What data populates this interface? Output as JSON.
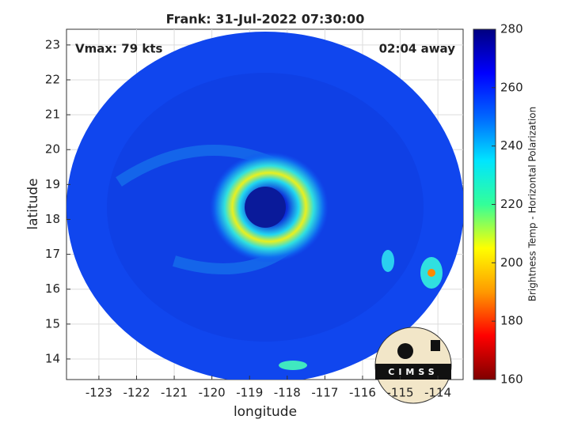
{
  "title": "Frank: 31-Jul-2022 07:30:00",
  "annotations": {
    "vmax": "Vmax: 79 kts",
    "time_away": "02:04 away"
  },
  "map": {
    "xlabel": "longitude",
    "ylabel": "latitude",
    "xlim": [
      -123.86,
      -113.33
    ],
    "ylim": [
      13.41,
      23.45
    ],
    "xticks": [
      -123,
      -122,
      -121,
      -120,
      -119,
      -118,
      -117,
      -116,
      -115,
      -114
    ],
    "yticks": [
      14,
      15,
      16,
      17,
      18,
      19,
      20,
      21,
      22,
      23
    ],
    "grid": true
  },
  "colorbar": {
    "label": "Brightness Temp - Horizontal Polarization",
    "lim": [
      160,
      280
    ],
    "ticks": [
      160,
      180,
      200,
      220,
      240,
      260,
      280
    ],
    "colormap": [
      "#7f0000",
      "#ff0000",
      "#ff9900",
      "#ffff00",
      "#33ff99",
      "#00e5ff",
      "#0066ff",
      "#0000ff",
      "#000080"
    ]
  },
  "logo": {
    "text": "CIMSS"
  }
}
